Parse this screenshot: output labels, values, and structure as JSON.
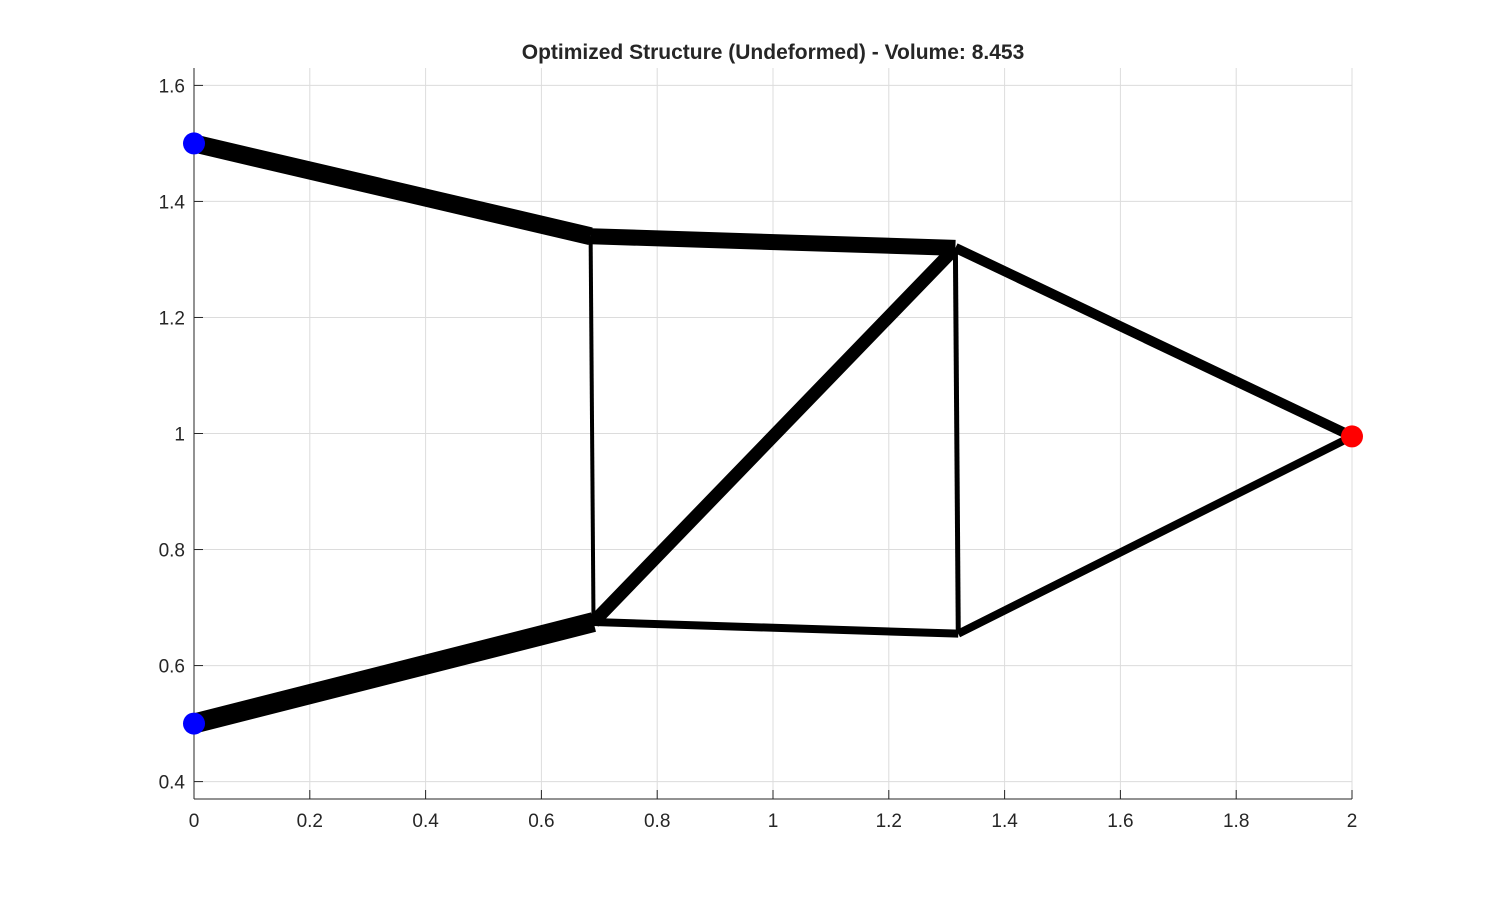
{
  "chart_data": {
    "type": "line",
    "title": "Optimized Structure (Undeformed) - Volume: 8.453",
    "xlabel": "",
    "ylabel": "",
    "xlim": [
      0,
      2
    ],
    "ylim": [
      0.37,
      1.63
    ],
    "xticks": [
      0,
      0.2,
      0.4,
      0.6,
      0.8,
      1,
      1.2,
      1.4,
      1.6,
      1.8,
      2
    ],
    "xtick_labels": [
      "0",
      "0.2",
      "0.4",
      "0.6",
      "0.8",
      "1",
      "1.2",
      "1.4",
      "1.6",
      "1.8",
      "2"
    ],
    "yticks": [
      0.4,
      0.6,
      0.8,
      1.0,
      1.2,
      1.4,
      1.6
    ],
    "ytick_labels": [
      "0.4",
      "0.6",
      "0.8",
      "1",
      "1.2",
      "1.4",
      "1.6"
    ],
    "grid": true,
    "nodes": [
      {
        "id": "N1",
        "x": 0,
        "y": 1.5
      },
      {
        "id": "N2",
        "x": 0,
        "y": 0.5
      },
      {
        "id": "N3",
        "x": 0.685,
        "y": 1.34
      },
      {
        "id": "N4",
        "x": 1.315,
        "y": 1.32
      },
      {
        "id": "N5",
        "x": 0.69,
        "y": 0.675
      },
      {
        "id": "N6",
        "x": 1.32,
        "y": 0.655
      },
      {
        "id": "N7",
        "x": 2.0,
        "y": 0.995
      }
    ],
    "members": [
      {
        "from": "N1",
        "to": "N3",
        "relative_thickness": 18
      },
      {
        "from": "N2",
        "to": "N5",
        "relative_thickness": 20
      },
      {
        "from": "N3",
        "to": "N4",
        "relative_thickness": 16
      },
      {
        "from": "N5",
        "to": "N4",
        "relative_thickness": 13
      },
      {
        "from": "N3",
        "to": "N5",
        "relative_thickness": 4
      },
      {
        "from": "N4",
        "to": "N6",
        "relative_thickness": 5
      },
      {
        "from": "N5",
        "to": "N6",
        "relative_thickness": 8
      },
      {
        "from": "N4",
        "to": "N7",
        "relative_thickness": 10
      },
      {
        "from": "N6",
        "to": "N7",
        "relative_thickness": 8
      }
    ],
    "markers": [
      {
        "node": "N1",
        "role": "support",
        "color": "#0000ff"
      },
      {
        "node": "N2",
        "role": "support",
        "color": "#0000ff"
      },
      {
        "node": "N7",
        "role": "load",
        "color": "#ff0000"
      }
    ],
    "member_color": "#000000"
  }
}
